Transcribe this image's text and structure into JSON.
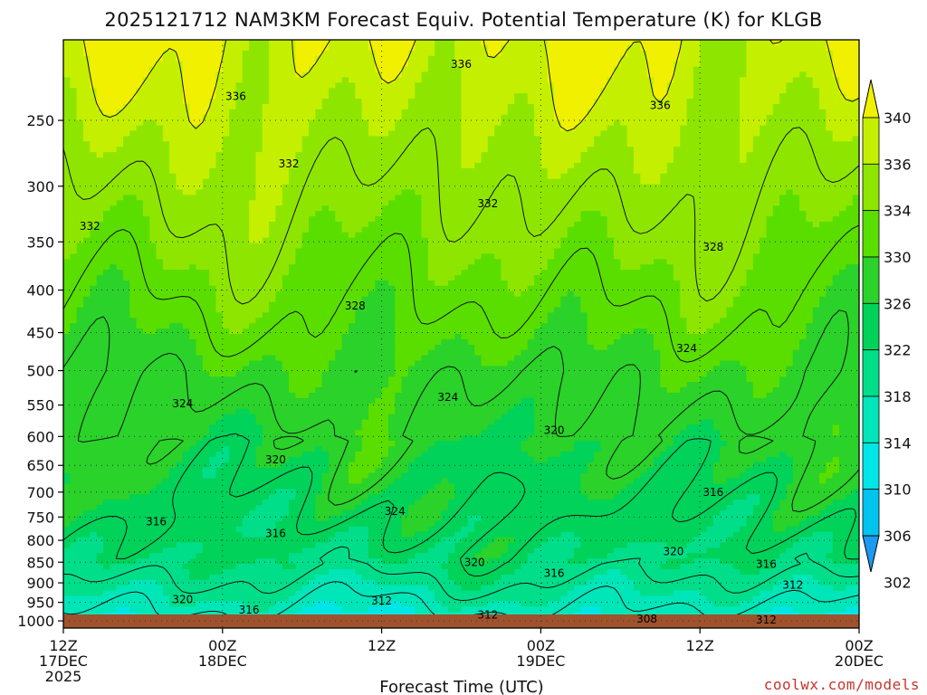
{
  "chart_data": {
    "type": "heatmap",
    "title": "2025121712 NAM3KM Forecast Equiv. Potential Temperature (K) for KLGB",
    "xlabel": "Forecast Time (UTC)",
    "ylabel": "",
    "x_ticks": [
      {
        "hour": 0,
        "line1": "12Z",
        "line2": "17DEC",
        "line3": "2025"
      },
      {
        "hour": 12,
        "line1": "00Z",
        "line2": "18DEC",
        "line3": ""
      },
      {
        "hour": 24,
        "line1": "12Z",
        "line2": "",
        "line3": ""
      },
      {
        "hour": 36,
        "line1": "00Z",
        "line2": "19DEC",
        "line3": ""
      },
      {
        "hour": 48,
        "line1": "12Z",
        "line2": "",
        "line3": ""
      },
      {
        "hour": 60,
        "line1": "00Z",
        "line2": "20DEC",
        "line3": ""
      }
    ],
    "xlim": [
      0,
      60
    ],
    "y_ticks": [
      250,
      300,
      350,
      400,
      450,
      500,
      550,
      600,
      650,
      700,
      750,
      800,
      850,
      900,
      950,
      1000
    ],
    "ylim_hPa": [
      1020,
      200
    ],
    "y_scale": "log-pressure",
    "grid": true,
    "colorbar": {
      "levels": [
        302,
        306,
        310,
        314,
        318,
        322,
        326,
        330,
        334,
        336,
        340
      ],
      "colors": [
        "#1a9af0",
        "#00c3f0",
        "#00e6e6",
        "#00e6b8",
        "#00de8a",
        "#00d25a",
        "#2ad22a",
        "#5ade00",
        "#8ee600",
        "#c4f000",
        "#f0f000"
      ],
      "extend": "both"
    },
    "contour_interval": 4,
    "contour_labels": [
      {
        "hour": 30,
        "p": 214,
        "text": "336"
      },
      {
        "hour": 13,
        "p": 234,
        "text": "336"
      },
      {
        "hour": 45,
        "p": 240,
        "text": "336"
      },
      {
        "hour": 17,
        "p": 282,
        "text": "332"
      },
      {
        "hour": 2,
        "p": 335,
        "text": "332"
      },
      {
        "hour": 32,
        "p": 315,
        "text": "332"
      },
      {
        "hour": 49,
        "p": 355,
        "text": "328"
      },
      {
        "hour": 22,
        "p": 418,
        "text": "328"
      },
      {
        "hour": 47,
        "p": 470,
        "text": "324"
      },
      {
        "hour": 9,
        "p": 548,
        "text": "324"
      },
      {
        "hour": 29,
        "p": 538,
        "text": "324"
      },
      {
        "hour": 37,
        "p": 590,
        "text": "320"
      },
      {
        "hour": 16,
        "p": 640,
        "text": "320"
      },
      {
        "hour": 49,
        "p": 700,
        "text": "316"
      },
      {
        "hour": 7,
        "p": 760,
        "text": "316"
      },
      {
        "hour": 16,
        "p": 785,
        "text": "316"
      },
      {
        "hour": 25,
        "p": 738,
        "text": "324"
      },
      {
        "hour": 31,
        "p": 850,
        "text": "320"
      },
      {
        "hour": 46,
        "p": 825,
        "text": "320"
      },
      {
        "hour": 37,
        "p": 877,
        "text": "316"
      },
      {
        "hour": 53,
        "p": 855,
        "text": "316"
      },
      {
        "hour": 55,
        "p": 905,
        "text": "312"
      },
      {
        "hour": 24,
        "p": 946,
        "text": "312"
      },
      {
        "hour": 9,
        "p": 942,
        "text": "320"
      },
      {
        "hour": 14,
        "p": 970,
        "text": "316"
      },
      {
        "hour": 32,
        "p": 983,
        "text": "312"
      },
      {
        "hour": 44,
        "p": 995,
        "text": "308"
      },
      {
        "hour": 53,
        "p": 997,
        "text": "312"
      }
    ],
    "surface_color": "#a0522d"
  },
  "credit": "coolwx.com/models"
}
